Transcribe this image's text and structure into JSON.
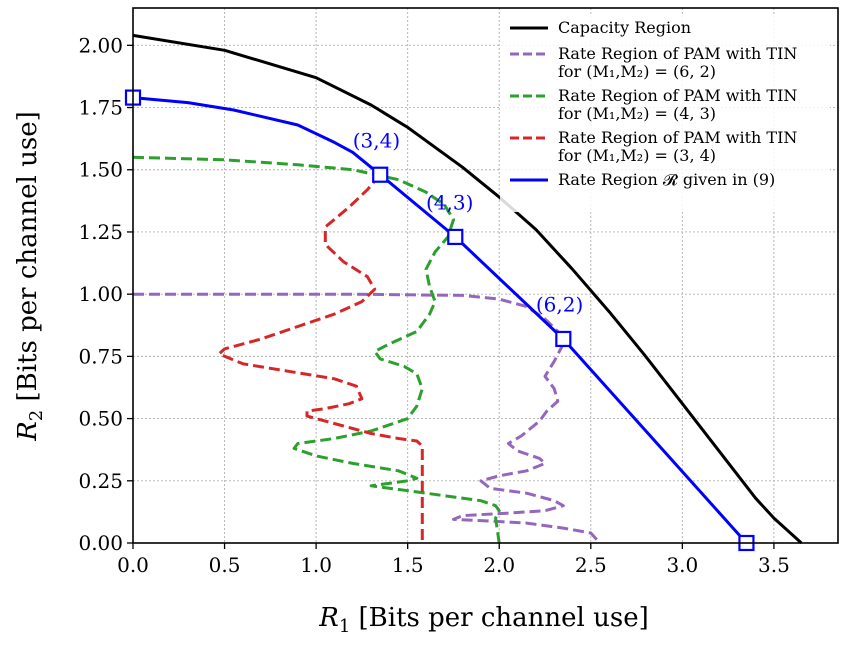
{
  "chart_data": {
    "type": "line",
    "title": "",
    "xlabel": "R₁ [Bits per channel use]",
    "ylabel": "R₂ [Bits per channel use]",
    "xlabel_parts": {
      "var": "R",
      "sub": "1",
      "rest": " [Bits per channel use]"
    },
    "ylabel_parts": {
      "var": "R",
      "sub": "2",
      "rest": " [Bits per channel use]"
    },
    "xlim": [
      0,
      3.85
    ],
    "ylim": [
      0,
      2.15
    ],
    "grid": true,
    "legend_position": "top-right",
    "xticks": [
      "0.0",
      "0.5",
      "1.0",
      "1.5",
      "2.0",
      "2.5",
      "3.0",
      "3.5"
    ],
    "yticks": [
      "0.00",
      "0.25",
      "0.50",
      "0.75",
      "1.00",
      "1.25",
      "1.50",
      "1.75",
      "2.00"
    ],
    "series": [
      {
        "name": "Capacity Region",
        "legend_lines": [
          "Capacity Region"
        ],
        "color": "#000000",
        "style": "solid",
        "points": [
          [
            0.0,
            2.04
          ],
          [
            0.5,
            1.98
          ],
          [
            1.0,
            1.87
          ],
          [
            1.3,
            1.76
          ],
          [
            1.5,
            1.67
          ],
          [
            1.8,
            1.51
          ],
          [
            2.0,
            1.39
          ],
          [
            2.2,
            1.26
          ],
          [
            2.4,
            1.1
          ],
          [
            2.6,
            0.93
          ],
          [
            2.8,
            0.75
          ],
          [
            3.0,
            0.56
          ],
          [
            3.2,
            0.37
          ],
          [
            3.4,
            0.18
          ],
          [
            3.5,
            0.1
          ],
          [
            3.65,
            0.0
          ]
        ]
      },
      {
        "name": "Rate Region of PAM with TIN for (M1,M2)=(6,2)",
        "legend_lines": [
          "Rate Region of PAM with TIN",
          " for (M₁,M₂) = (6, 2)"
        ],
        "color": "#9467bd",
        "style": "dashed",
        "points": [
          [
            0.0,
            1.0
          ],
          [
            0.6,
            1.0
          ],
          [
            1.2,
            1.0
          ],
          [
            1.8,
            0.995
          ],
          [
            2.0,
            0.98
          ],
          [
            2.15,
            0.95
          ],
          [
            2.25,
            0.9
          ],
          [
            2.32,
            0.85
          ],
          [
            2.35,
            0.8
          ],
          [
            2.3,
            0.73
          ],
          [
            2.25,
            0.67
          ],
          [
            2.3,
            0.62
          ],
          [
            2.32,
            0.57
          ],
          [
            2.26,
            0.53
          ],
          [
            2.22,
            0.49
          ],
          [
            2.12,
            0.43
          ],
          [
            2.05,
            0.4
          ],
          [
            2.1,
            0.37
          ],
          [
            2.22,
            0.34
          ],
          [
            2.25,
            0.32
          ],
          [
            2.15,
            0.29
          ],
          [
            2.0,
            0.27
          ],
          [
            1.9,
            0.25
          ],
          [
            1.95,
            0.22
          ],
          [
            2.15,
            0.2
          ],
          [
            2.3,
            0.17
          ],
          [
            2.35,
            0.15
          ],
          [
            2.25,
            0.13
          ],
          [
            2.05,
            0.12
          ],
          [
            1.8,
            0.11
          ],
          [
            1.75,
            0.095
          ],
          [
            1.9,
            0.09
          ],
          [
            2.15,
            0.08
          ],
          [
            2.35,
            0.06
          ],
          [
            2.5,
            0.04
          ],
          [
            2.55,
            0.0
          ]
        ]
      },
      {
        "name": "Rate Region of PAM with TIN for (M1,M2)=(4,3)",
        "legend_lines": [
          "Rate Region of PAM with TIN",
          " for (M₁,M₂) = (4, 3)"
        ],
        "color": "#2ca02c",
        "style": "dashed",
        "points": [
          [
            0.0,
            1.55
          ],
          [
            0.5,
            1.54
          ],
          [
            0.9,
            1.52
          ],
          [
            1.2,
            1.5
          ],
          [
            1.45,
            1.46
          ],
          [
            1.6,
            1.41
          ],
          [
            1.7,
            1.36
          ],
          [
            1.75,
            1.3
          ],
          [
            1.72,
            1.23
          ],
          [
            1.65,
            1.17
          ],
          [
            1.6,
            1.1
          ],
          [
            1.62,
            1.03
          ],
          [
            1.65,
            0.97
          ],
          [
            1.62,
            0.92
          ],
          [
            1.55,
            0.85
          ],
          [
            1.4,
            0.8
          ],
          [
            1.32,
            0.77
          ],
          [
            1.35,
            0.74
          ],
          [
            1.48,
            0.71
          ],
          [
            1.55,
            0.68
          ],
          [
            1.58,
            0.62
          ],
          [
            1.55,
            0.55
          ],
          [
            1.5,
            0.5
          ],
          [
            1.3,
            0.45
          ],
          [
            1.1,
            0.42
          ],
          [
            0.9,
            0.4
          ],
          [
            0.88,
            0.38
          ],
          [
            1.0,
            0.35
          ],
          [
            1.2,
            0.32
          ],
          [
            1.45,
            0.29
          ],
          [
            1.55,
            0.26
          ],
          [
            1.5,
            0.25
          ],
          [
            1.3,
            0.23
          ],
          [
            1.5,
            0.21
          ],
          [
            1.7,
            0.19
          ],
          [
            1.9,
            0.17
          ],
          [
            1.98,
            0.15
          ],
          [
            2.0,
            0.13
          ],
          [
            1.98,
            0.1
          ],
          [
            2.0,
            0.0
          ]
        ]
      },
      {
        "name": "Rate Region of PAM with TIN for (M1,M2)=(3,4)",
        "legend_lines": [
          "Rate Region of PAM with TIN",
          " for (M₁,M₂) = (3, 4)"
        ],
        "color": "#d62728",
        "style": "dashed",
        "points": [
          [
            1.35,
            1.48
          ],
          [
            1.28,
            1.42
          ],
          [
            1.18,
            1.35
          ],
          [
            1.05,
            1.27
          ],
          [
            1.05,
            1.2
          ],
          [
            1.15,
            1.13
          ],
          [
            1.28,
            1.07
          ],
          [
            1.32,
            1.02
          ],
          [
            1.25,
            0.97
          ],
          [
            1.1,
            0.92
          ],
          [
            0.9,
            0.87
          ],
          [
            0.7,
            0.82
          ],
          [
            0.5,
            0.78
          ],
          [
            0.47,
            0.76
          ],
          [
            0.6,
            0.72
          ],
          [
            0.85,
            0.69
          ],
          [
            1.1,
            0.66
          ],
          [
            1.22,
            0.63
          ],
          [
            1.25,
            0.58
          ],
          [
            1.18,
            0.56
          ],
          [
            1.05,
            0.54
          ],
          [
            0.95,
            0.53
          ],
          [
            0.95,
            0.51
          ],
          [
            1.05,
            0.49
          ],
          [
            1.2,
            0.46
          ],
          [
            1.3,
            0.44
          ],
          [
            1.45,
            0.42
          ],
          [
            1.55,
            0.41
          ],
          [
            1.58,
            0.39
          ],
          [
            1.58,
            0.3
          ],
          [
            1.58,
            0.0
          ]
        ]
      },
      {
        "name": "Rate Region R given in (9)",
        "legend_lines": [
          "Rate Region 𝓡 given in (9)"
        ],
        "color": "#0000ff",
        "style": "solid",
        "points": [
          [
            0.0,
            1.79
          ],
          [
            0.3,
            1.77
          ],
          [
            0.55,
            1.74
          ],
          [
            0.9,
            1.68
          ],
          [
            1.1,
            1.61
          ],
          [
            1.2,
            1.57
          ],
          [
            1.3,
            1.51
          ],
          [
            1.35,
            1.48
          ],
          [
            1.76,
            1.23
          ],
          [
            2.35,
            0.82
          ],
          [
            3.35,
            0.0
          ]
        ]
      }
    ],
    "markers": [
      {
        "x": 0.0,
        "y": 1.79
      },
      {
        "x": 1.35,
        "y": 1.48
      },
      {
        "x": 1.76,
        "y": 1.23
      },
      {
        "x": 2.35,
        "y": 0.82
      },
      {
        "x": 3.35,
        "y": 0.0
      }
    ],
    "annotations": [
      {
        "text": "(3,4)",
        "x": 1.35,
        "y": 1.48,
        "color": "#0000ff",
        "dx": 1.2,
        "dy": 1.59
      },
      {
        "text": "(4,3)",
        "x": 1.76,
        "y": 1.23,
        "color": "#0000ff",
        "dx": 1.6,
        "dy": 1.34
      },
      {
        "text": "(6,2)",
        "x": 2.35,
        "y": 0.82,
        "color": "#0000ff",
        "dx": 2.2,
        "dy": 0.93
      }
    ]
  }
}
